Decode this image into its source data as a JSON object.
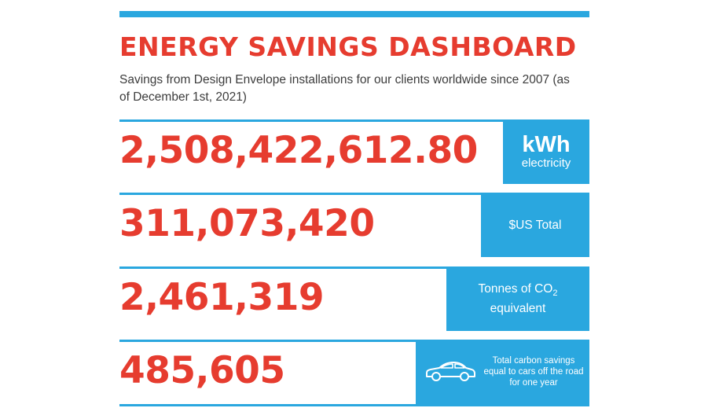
{
  "header": {
    "title": "ENERGY SAVINGS DASHBOARD",
    "subtitle": "Savings from Design Envelope installations for our clients worldwide since 2007 (as of December 1st, 2021)"
  },
  "stats": [
    {
      "value": "2,508,422,612.80",
      "unit_main": "kWh",
      "unit_sub": "electricity"
    },
    {
      "value": "311,073,420",
      "unit_label": "$US Total"
    },
    {
      "value": "2,461,319",
      "unit_line1_prefix": "Tonnes of CO",
      "unit_line1_sub": "2",
      "unit_line2": "equivalent"
    },
    {
      "value": "485,605",
      "unit_label": "Total carbon savings equal to cars off the road for one year",
      "icon": "car-icon"
    }
  ],
  "colors": {
    "accent_blue": "#2aa7df",
    "accent_red": "#e63c2f",
    "body_text": "#3c3c3c"
  }
}
